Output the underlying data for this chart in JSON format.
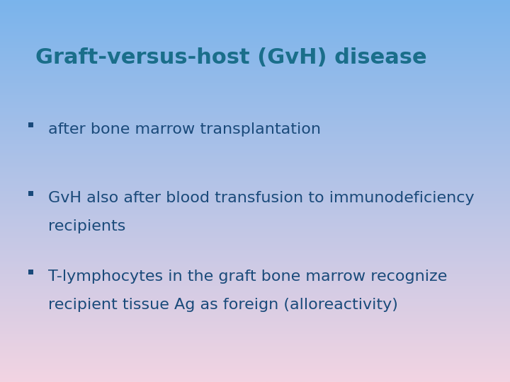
{
  "title": "Graft-versus-host (GvH) disease",
  "title_color": "#1a6e8a",
  "title_fontsize": 22,
  "bullet_color": "#1a4a7a",
  "bullet_fontsize": 16,
  "bullet_symbol": "§",
  "bullets": [
    {
      "lines": [
        "after bone marrow transplantation"
      ]
    },
    {
      "lines": [
        "GvH also after blood transfusion to immunodeficiency",
        "recipients"
      ]
    },
    {
      "lines": [
        "T-lymphocytes in the graft bone marrow recognize",
        "recipient tissue Ag as foreign (alloreactivity)"
      ]
    }
  ],
  "bg_top_color": "#7ab4ec",
  "bg_bottom_color": "#f2d4e2",
  "figwidth": 7.2,
  "figheight": 5.4,
  "dpi": 100
}
